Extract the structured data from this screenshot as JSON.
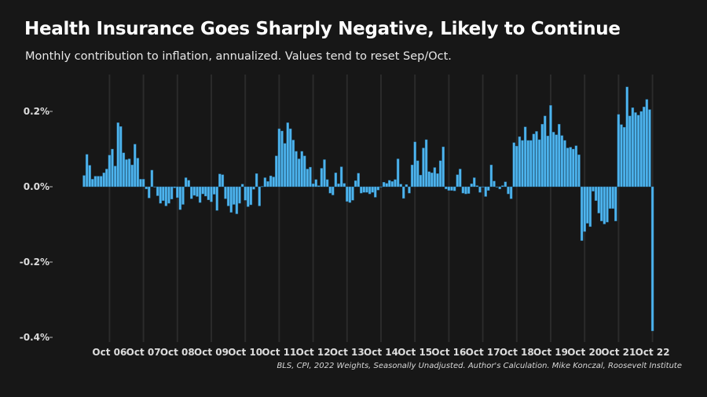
{
  "title": "Health Insurance Goes Sharply Negative, Likely to Continue",
  "subtitle": "Monthly contribution to inflation, annualized. Values tend to reset Sep/Oct.",
  "source": "BLS, CPI, 2022 Weights, Seasonally Unadjusted. Author's Calculation. Mike Konczal, Roosevelt Institute",
  "chart_data": {
    "type": "bar",
    "title": "Health Insurance Goes Sharply Negative, Likely to Continue",
    "unit": "%",
    "ylim": [
      -0.42,
      0.3
    ],
    "y_ticks": [
      {
        "value": 0.2,
        "label": "0.2%"
      },
      {
        "value": 0.0,
        "label": "0.0%"
      },
      {
        "value": -0.2,
        "label": "-0.2%"
      },
      {
        "value": -0.4,
        "label": "-0.4%"
      }
    ],
    "x_ticks": [
      "Oct 06",
      "Oct 07",
      "Oct 08",
      "Oct 09",
      "Oct 10",
      "Oct 11",
      "Oct 12",
      "Oct 13",
      "Oct 14",
      "Oct 15",
      "Oct 16",
      "Oct 17",
      "Oct 18",
      "Oct 19",
      "Oct 20",
      "Oct 21",
      "Oct 22"
    ],
    "grid": "vertical lines at each October",
    "bar_color": "#4db4ee",
    "background": "#171717",
    "monthly_values_by_year": {
      "2006": [
        0.03,
        0.086,
        0.057,
        0.02,
        0.028,
        0.028,
        0.028,
        0.037,
        0.047,
        0.084,
        0.1,
        0.055
      ],
      "2007": [
        0.17,
        0.16,
        0.09,
        0.072,
        0.074,
        0.058,
        0.113,
        0.076,
        0.02,
        0.02,
        -0.006,
        -0.03
      ],
      "2008": [
        0.044,
        0.0,
        -0.024,
        -0.044,
        -0.037,
        -0.051,
        -0.044,
        -0.033,
        -0.003,
        -0.029,
        -0.061,
        -0.047
      ],
      "2009": [
        0.024,
        0.017,
        -0.032,
        -0.023,
        -0.026,
        -0.042,
        -0.019,
        -0.025,
        -0.035,
        -0.04,
        -0.02,
        -0.063
      ],
      "2010": [
        0.034,
        0.032,
        -0.032,
        -0.051,
        -0.068,
        -0.047,
        -0.072,
        -0.044,
        0.007,
        -0.036,
        -0.053,
        -0.048
      ],
      "2011": [
        -0.007,
        0.035,
        -0.051,
        0.001,
        0.024,
        0.014,
        0.029,
        0.026,
        0.082,
        0.154,
        0.148,
        0.115
      ],
      "2012": [
        0.17,
        0.154,
        0.124,
        0.094,
        0.074,
        0.094,
        0.082,
        0.047,
        0.052,
        0.008,
        0.019,
        0.003
      ],
      "2013": [
        0.049,
        0.072,
        0.019,
        -0.017,
        -0.022,
        0.037,
        0.008,
        0.053,
        0.009,
        -0.039,
        -0.042,
        -0.036
      ],
      "2014": [
        0.016,
        0.036,
        -0.017,
        -0.015,
        -0.015,
        -0.019,
        -0.015,
        -0.028,
        -0.009,
        0.0,
        0.012,
        0.009
      ],
      "2015": [
        0.017,
        0.014,
        0.019,
        0.074,
        0.007,
        -0.031,
        0.006,
        -0.017,
        0.058,
        0.119,
        0.069,
        0.031
      ],
      "2016": [
        0.103,
        0.125,
        0.04,
        0.037,
        0.051,
        0.035,
        0.069,
        0.106,
        -0.006,
        -0.01,
        -0.01,
        -0.011
      ],
      "2017": [
        0.032,
        0.047,
        -0.017,
        -0.019,
        -0.018,
        0.008,
        0.024,
        0.003,
        -0.015,
        -0.001,
        -0.026,
        -0.01
      ],
      "2018": [
        0.058,
        0.015,
        -0.001,
        -0.006,
        0.003,
        0.013,
        -0.019,
        -0.032,
        0.117,
        0.108,
        0.133,
        0.123
      ],
      "2019": [
        0.159,
        0.123,
        0.123,
        0.14,
        0.147,
        0.125,
        0.166,
        0.188,
        0.135,
        0.216,
        0.145,
        0.138
      ],
      "2020": [
        0.166,
        0.136,
        0.123,
        0.103,
        0.105,
        0.1,
        0.109,
        0.085,
        -0.143,
        -0.119,
        -0.097,
        -0.106
      ],
      "2021": [
        -0.012,
        -0.037,
        -0.07,
        -0.091,
        -0.099,
        -0.094,
        -0.058,
        -0.058,
        -0.091,
        0.192,
        0.165,
        0.158
      ],
      "2022": [
        0.265,
        0.188,
        0.21,
        0.197,
        0.19,
        0.2,
        0.212,
        0.232,
        0.205,
        -0.383
      ]
    }
  }
}
